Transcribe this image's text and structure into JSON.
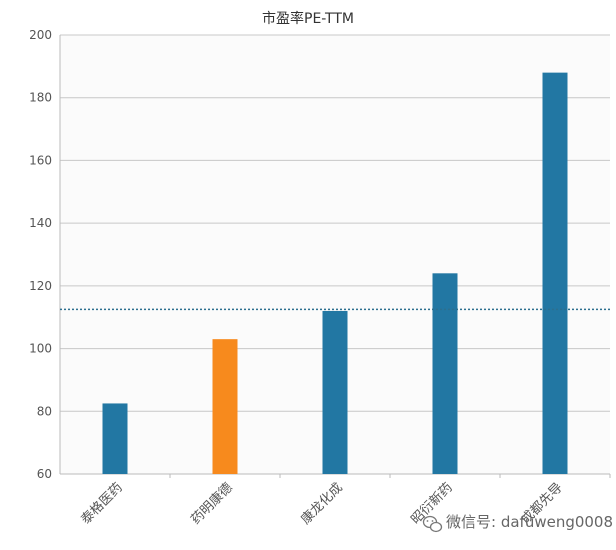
{
  "chart_data": {
    "type": "bar",
    "title": "市盈率PE-TTM",
    "categories": [
      "泰格医药",
      "药明康德",
      "康龙化成",
      "昭衍新药",
      "成都先导"
    ],
    "values": [
      82.5,
      103,
      112,
      124,
      188
    ],
    "highlight_index": 1,
    "reference_line": 112.5,
    "ylim": [
      60,
      200
    ],
    "yticks": [
      60,
      80,
      100,
      120,
      140,
      160,
      180,
      200
    ],
    "grid": true,
    "colors": {
      "bar": "#2277a3",
      "highlight": "#f78a1d",
      "grid": "#c8c8c8",
      "reference": "#2c6f8f"
    }
  },
  "watermark": {
    "text": "微信号: dafuweng0008",
    "icon": "wechat-icon"
  }
}
